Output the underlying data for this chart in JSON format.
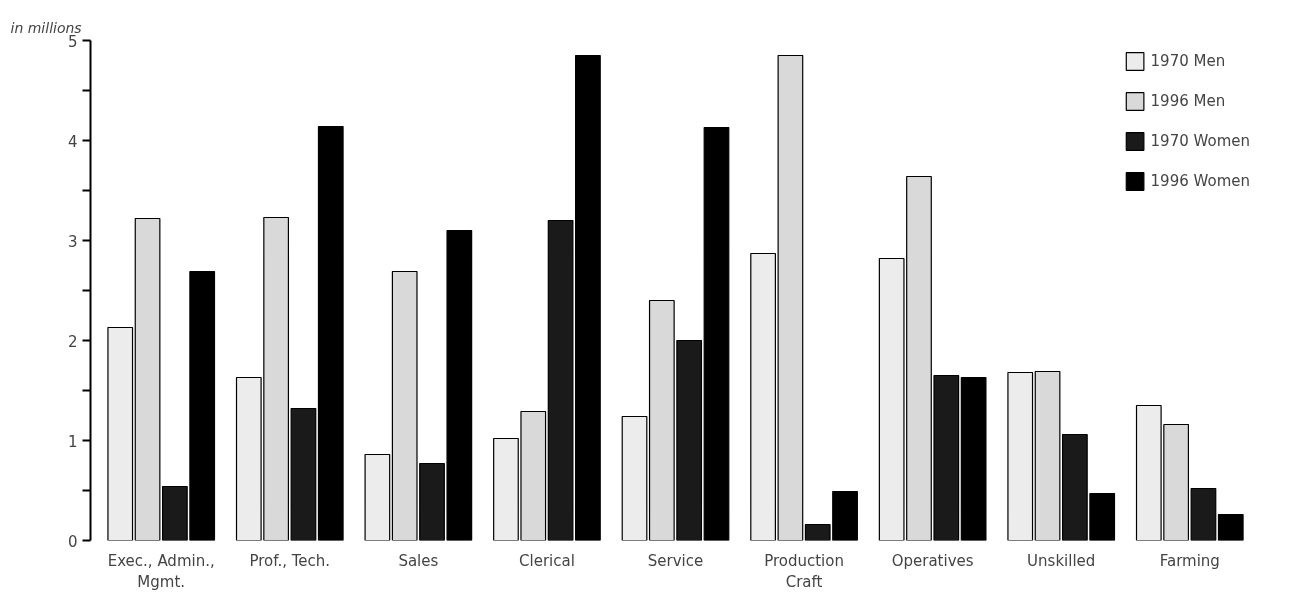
{
  "chart_data": {
    "type": "bar",
    "ylabel": "in millions",
    "categories": [
      "Exec., Admin.,\nMgmt.",
      "Prof., Tech.",
      "Sales",
      "Clerical",
      "Service",
      "Production\nCraft",
      "Operatives",
      "Unskilled",
      "Farming"
    ],
    "series": [
      {
        "name": "1970 Men",
        "color": "#ececec",
        "values": [
          2.13,
          1.63,
          0.86,
          1.02,
          1.24,
          2.87,
          2.82,
          1.68,
          1.35
        ]
      },
      {
        "name": "1996 Men",
        "color": "#d9d9d9",
        "values": [
          3.22,
          3.23,
          2.69,
          1.29,
          2.4,
          4.85,
          3.64,
          1.69,
          1.16
        ]
      },
      {
        "name": "1970 Women",
        "color": "#1a1a1a",
        "values": [
          0.54,
          1.32,
          0.77,
          3.2,
          2.0,
          0.16,
          1.65,
          1.06,
          0.52
        ]
      },
      {
        "name": "1996 Women",
        "color": "#000000",
        "values": [
          2.69,
          4.14,
          3.1,
          4.85,
          4.13,
          0.49,
          1.63,
          0.47,
          0.26
        ]
      }
    ],
    "ylim": [
      0,
      5
    ],
    "yticks": [
      0,
      {
        "value": 0.5,
        "label": null
      },
      1,
      {
        "value": 1.5,
        "label": null
      },
      2,
      {
        "value": 2.5,
        "label": null
      },
      3,
      {
        "value": 3.5,
        "label": null
      },
      4,
      {
        "value": 4.5,
        "label": null
      },
      5
    ],
    "grid": false,
    "legend": "top right"
  }
}
